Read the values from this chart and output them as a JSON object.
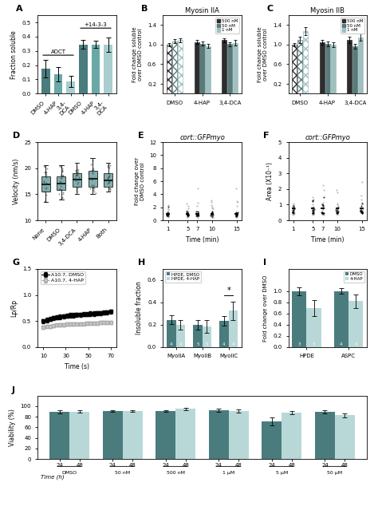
{
  "panel_A": {
    "categories": [
      "DMSO",
      "4-HAP",
      "3,4-DCA",
      "DMSO",
      "4-HAP",
      "3,4-DCA"
    ],
    "values": [
      0.175,
      0.135,
      0.085,
      0.345,
      0.345,
      0.345
    ],
    "errors": [
      0.06,
      0.05,
      0.04,
      0.03,
      0.025,
      0.05
    ],
    "colors": [
      "#4a7c7e",
      "#6aa8a8",
      "#a8cece",
      "#4a7c7e",
      "#6aa8a8",
      "#a8cece"
    ],
    "ylabel": "Fraction soluble",
    "ylim": [
      0,
      0.55
    ],
    "yticks": [
      0.0,
      0.1,
      0.2,
      0.3,
      0.4,
      0.5
    ],
    "adct_label": "ADCT",
    "plus14_label": "+14-3-3"
  },
  "panel_B": {
    "title": "Myosin IIA",
    "groups": [
      "DMSO",
      "4-HAP",
      "3,4-DCA"
    ],
    "series_labels": [
      "500 nM",
      "50 nM",
      "1 nM"
    ],
    "values": [
      [
        1.0,
        1.07,
        1.09
      ],
      [
        1.05,
        1.02,
        0.97
      ],
      [
        1.09,
        1.01,
        1.04
      ]
    ],
    "errors": [
      [
        0.03,
        0.04,
        0.04
      ],
      [
        0.04,
        0.04,
        0.04
      ],
      [
        0.04,
        0.04,
        0.05
      ]
    ],
    "colors": [
      "#2d2d2d",
      "#5a7a7a",
      "#a0bfbf"
    ],
    "ylabel": "Fold change soluble\nover DMSO control",
    "ylim": [
      0,
      1.6
    ],
    "yticks": [
      0.2,
      0.6,
      1.0,
      1.4
    ]
  },
  "panel_C": {
    "title": "Myosin IIB",
    "groups": [
      "DMSO",
      "4-HAP",
      "3,4-DCA"
    ],
    "series_labels": [
      "500 nM",
      "50 nM",
      "1 nM"
    ],
    "values": [
      [
        1.0,
        1.1,
        1.27
      ],
      [
        1.05,
        1.02,
        1.0
      ],
      [
        1.1,
        0.97,
        1.15
      ]
    ],
    "errors": [
      [
        0.03,
        0.06,
        0.08
      ],
      [
        0.05,
        0.05,
        0.05
      ],
      [
        0.06,
        0.05,
        0.07
      ]
    ],
    "colors": [
      "#2d2d2d",
      "#5a7a7a",
      "#a0bfbf"
    ],
    "ylabel": "Fold change soluble\nover DMSO control",
    "ylim": [
      0,
      1.6
    ],
    "yticks": [
      0.2,
      0.6,
      1.0,
      1.4
    ]
  },
  "panel_D": {
    "categories": [
      "None",
      "DMSO",
      "3,4-DCA",
      "4-HAP",
      "Both"
    ],
    "medians": [
      16.5,
      16.8,
      17.8,
      17.8,
      17.5
    ],
    "q1": [
      15.5,
      15.8,
      16.5,
      16.5,
      16.5
    ],
    "q3": [
      18.5,
      18.5,
      19.0,
      19.5,
      19.0
    ],
    "whislo": [
      13.5,
      14.0,
      15.0,
      15.0,
      15.5
    ],
    "whishi": [
      20.5,
      20.5,
      21.0,
      22.0,
      21.0
    ],
    "ylabel": "Velocity (nm/s)",
    "ylim": [
      10,
      25
    ],
    "yticks": [
      10,
      15,
      20,
      25
    ]
  },
  "panel_E": {
    "title": "cort::GFPmyo",
    "xlabel": "Time (min)",
    "ylabel": "Fold change over\nDMSO control",
    "xlim": [
      0,
      16
    ],
    "ylim": [
      0,
      12
    ],
    "xticks": [
      1,
      5,
      7,
      10,
      15
    ],
    "yticks": [
      0,
      2,
      4,
      6,
      8,
      10,
      12
    ]
  },
  "panel_F": {
    "title": "cort::GFPmyo",
    "xlabel": "Time (min)",
    "ylabel": "Area (X10⁻¹)",
    "xlim": [
      0,
      16
    ],
    "ylim": [
      0,
      5
    ],
    "xticks": [
      1,
      5,
      7,
      10,
      15
    ],
    "yticks": [
      0,
      1,
      2,
      3,
      4,
      5
    ]
  },
  "panel_G": {
    "xlabel": "Time (s)",
    "ylabel": "Lp/Rp",
    "xlim": [
      5,
      75
    ],
    "ylim": [
      0,
      1.5
    ],
    "xticks": [
      10,
      30,
      50,
      70
    ],
    "yticks": [
      0,
      0.5,
      1.0,
      1.5
    ],
    "series1_label": "A10.7, DMSO",
    "series2_label": "A10.7, 4-HAP",
    "series1_times": [
      10,
      13,
      16,
      19,
      22,
      25,
      28,
      31,
      34,
      37,
      40,
      43,
      46,
      49,
      52,
      55,
      58,
      61,
      64,
      67,
      70
    ],
    "series1_values": [
      0.5,
      0.52,
      0.54,
      0.56,
      0.57,
      0.58,
      0.59,
      0.6,
      0.61,
      0.61,
      0.62,
      0.62,
      0.63,
      0.63,
      0.64,
      0.64,
      0.65,
      0.65,
      0.66,
      0.67,
      0.68
    ],
    "series1_errors": [
      0.04,
      0.04,
      0.04,
      0.04,
      0.04,
      0.04,
      0.04,
      0.04,
      0.04,
      0.04,
      0.04,
      0.04,
      0.04,
      0.04,
      0.04,
      0.04,
      0.04,
      0.04,
      0.04,
      0.04,
      0.04
    ],
    "series2_values": [
      0.38,
      0.39,
      0.4,
      0.41,
      0.42,
      0.43,
      0.43,
      0.44,
      0.44,
      0.44,
      0.45,
      0.45,
      0.45,
      0.46,
      0.46,
      0.46,
      0.46,
      0.47,
      0.47,
      0.47,
      0.47
    ],
    "series2_errors": [
      0.03,
      0.03,
      0.03,
      0.03,
      0.03,
      0.03,
      0.03,
      0.03,
      0.03,
      0.03,
      0.03,
      0.03,
      0.03,
      0.03,
      0.03,
      0.03,
      0.03,
      0.03,
      0.03,
      0.03,
      0.03
    ]
  },
  "panel_H": {
    "groups": [
      "MyoIIA",
      "MyoIIB",
      "MyoIIC"
    ],
    "dmso_values": [
      0.245,
      0.2,
      0.235
    ],
    "hap_values": [
      0.2,
      0.185,
      0.325
    ],
    "dmso_errors": [
      0.04,
      0.04,
      0.04
    ],
    "hap_errors": [
      0.04,
      0.06,
      0.08
    ],
    "dmso_n": [
      4,
      5,
      4
    ],
    "hap_n": [
      4,
      5,
      4
    ],
    "dmso_color": "#4a7c7e",
    "hap_color": "#b8d8d8",
    "ylabel": "Insoluble fraction",
    "ylim": [
      0,
      0.7
    ],
    "yticks": [
      0,
      0.2,
      0.4,
      0.6
    ]
  },
  "panel_I": {
    "groups": [
      "HPDE",
      "ASPC"
    ],
    "dmso_values": [
      1.0,
      1.0
    ],
    "hap_values": [
      0.7,
      0.82
    ],
    "dmso_errors": [
      0.07,
      0.05
    ],
    "hap_errors": [
      0.14,
      0.12
    ],
    "dmso_n": [
      3,
      4
    ],
    "hap_n": [
      3,
      4
    ],
    "dmso_color": "#4a7c7e",
    "hap_color": "#b8d8d8",
    "ylabel": "Fold change over DMSO",
    "ylim": [
      0,
      1.4
    ],
    "yticks": [
      0.0,
      0.2,
      0.4,
      0.6,
      0.8,
      1.0
    ]
  },
  "panel_J": {
    "conditions": [
      "DMSO",
      "50 nM",
      "500 nM",
      "1 μM",
      "5 μM",
      "50 μM"
    ],
    "time_24": [
      90,
      91,
      91,
      92,
      71,
      90
    ],
    "time_48": [
      90,
      91,
      95,
      91,
      88,
      83
    ],
    "err_24": [
      3,
      2,
      2,
      3,
      8,
      3
    ],
    "err_48": [
      2,
      2,
      2,
      3,
      3,
      4
    ],
    "ylabel": "Viability (%)",
    "ylim": [
      0,
      120
    ],
    "yticks": [
      0,
      20,
      40,
      60,
      80,
      100
    ],
    "color_24": "#4a7c7e",
    "color_48": "#b8d8d8"
  }
}
